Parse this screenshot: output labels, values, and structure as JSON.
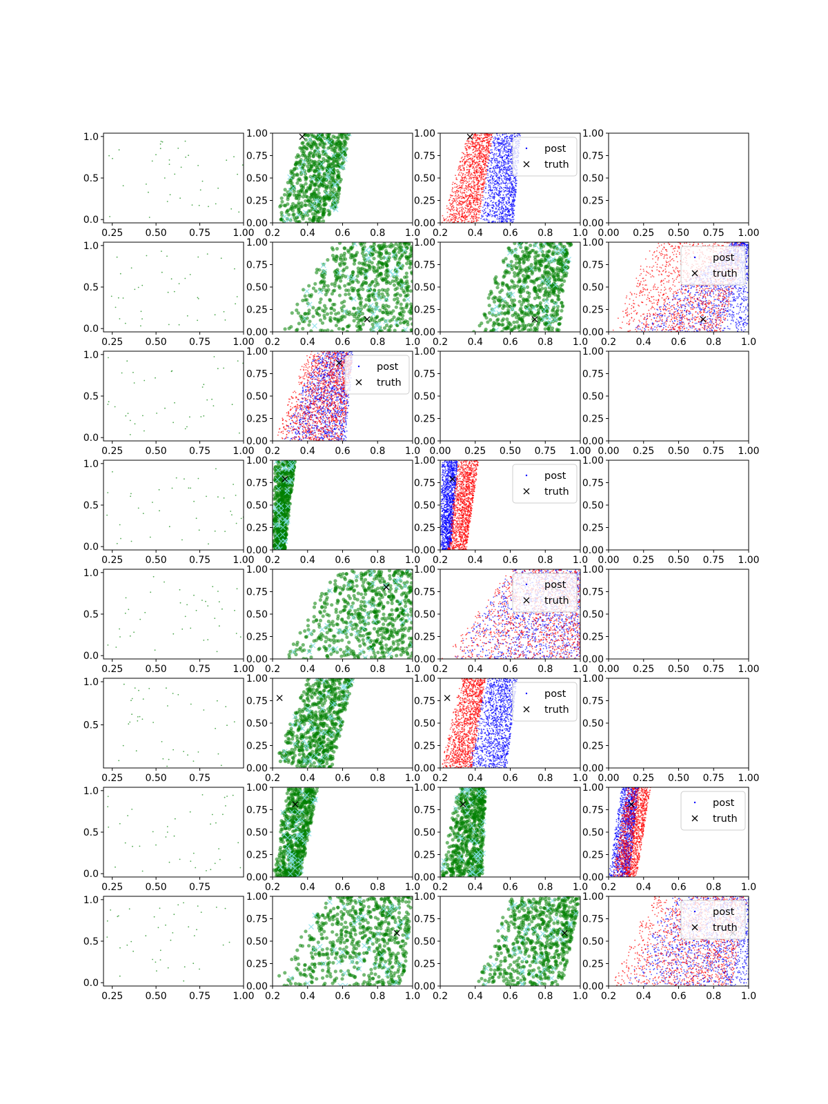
{
  "chart_data": {
    "type": "scatter",
    "title": "",
    "grid": "off",
    "rows": 8,
    "cols": 4,
    "legend_labels": {
      "post": "post",
      "truth": "truth"
    },
    "colors": {
      "green": "#008000",
      "cyan": "#7fdfe6",
      "red": "#ff0000",
      "blue": "#0000ff",
      "black": "#000000",
      "axis": "#000000"
    },
    "panels": [
      {
        "id": "r1c1",
        "row": 0,
        "col": 0,
        "kind": "sparse",
        "xlim": [
          0.2,
          1.0
        ],
        "ylim": [
          -0.04,
          1.04
        ],
        "xticks": [
          "0.25",
          "0.50",
          "0.75",
          "1.00"
        ],
        "yticks": [
          "0.0",
          "0.5",
          "1.0"
        ]
      },
      {
        "id": "r1c2",
        "row": 0,
        "col": 1,
        "kind": "green",
        "xlim": [
          0.2,
          1.0
        ],
        "ylim": [
          0,
          1
        ],
        "xticks": [
          "0.2",
          "0.4",
          "0.6",
          "0.8",
          "1.0"
        ],
        "yticks": [
          "0.00",
          "0.25",
          "0.50",
          "0.75",
          "1.00"
        ],
        "band": {
          "left": [
            0.2,
            0.38
          ],
          "right": [
            0.55,
            0.64
          ]
        },
        "truth": [
          0.37,
          0.96
        ]
      },
      {
        "id": "r1c3",
        "row": 0,
        "col": 2,
        "kind": "redblue",
        "xlim": [
          0.2,
          1.0
        ],
        "ylim": [
          0,
          1
        ],
        "xticks": [
          "0.2",
          "0.4",
          "0.6",
          "0.8",
          "1.0"
        ],
        "yticks": [
          "0.00",
          "0.25",
          "0.50",
          "0.75",
          "1.00"
        ],
        "red": {
          "left": [
            0.2,
            0.36
          ],
          "right": [
            0.42,
            0.5
          ]
        },
        "blue": {
          "left": [
            0.42,
            0.5
          ],
          "right": [
            0.62,
            0.66
          ]
        },
        "truth": [
          0.37,
          0.96
        ],
        "legend": "top-right"
      },
      {
        "id": "r1c4",
        "row": 0,
        "col": 3,
        "kind": "empty",
        "xlim": [
          0,
          1
        ],
        "ylim": [
          0,
          1
        ],
        "xticks": [
          "0.00",
          "0.25",
          "0.50",
          "0.75",
          "1.00"
        ],
        "yticks": [
          "0.00",
          "0.25",
          "0.50",
          "0.75",
          "1.00"
        ]
      },
      {
        "id": "r2c1",
        "row": 1,
        "col": 0,
        "kind": "sparse",
        "xlim": [
          0.2,
          1.0
        ],
        "ylim": [
          -0.04,
          1.04
        ],
        "xticks": [
          "0.25",
          "0.50",
          "0.75",
          "1.00"
        ],
        "yticks": [
          "0.0",
          "0.5",
          "1.0"
        ]
      },
      {
        "id": "r2c2",
        "row": 1,
        "col": 1,
        "kind": "green",
        "xlim": [
          0.2,
          1.0
        ],
        "ylim": [
          0,
          1
        ],
        "xticks": [
          "0.2",
          "0.4",
          "0.6",
          "0.8",
          "1.0"
        ],
        "yticks": [
          "0.00",
          "0.25",
          "0.50",
          "0.75",
          "1.00"
        ],
        "band": {
          "left": [
            0.22,
            0.55
          ],
          "right": [
            1.0,
            1.0
          ]
        },
        "truth": [
          0.74,
          0.14
        ]
      },
      {
        "id": "r2c3",
        "row": 1,
        "col": 2,
        "kind": "green",
        "xlim": [
          0.2,
          1.0
        ],
        "ylim": [
          0,
          1
        ],
        "xticks": [
          "0.2",
          "0.4",
          "0.6",
          "0.8",
          "1.0"
        ],
        "yticks": [
          "0.00",
          "0.25",
          "0.50",
          "0.75",
          "1.00"
        ],
        "band": {
          "left": [
            0.38,
            0.6
          ],
          "right": [
            0.88,
            0.95
          ]
        },
        "truth": [
          0.74,
          0.14
        ]
      },
      {
        "id": "r2c4",
        "row": 1,
        "col": 3,
        "kind": "redblue",
        "xlim": [
          0.2,
          1.0
        ],
        "ylim": [
          0,
          1
        ],
        "xticks": [
          "0.2",
          "0.4",
          "0.6",
          "0.8",
          "1.0"
        ],
        "yticks": [
          "0.00",
          "0.25",
          "0.50",
          "0.75",
          "1.00"
        ],
        "red": {
          "left": [
            0.2,
            0.45
          ],
          "right": [
            0.85,
            0.98
          ]
        },
        "blue": {
          "left": [
            0.3,
            0.9
          ],
          "right": [
            1.0,
            1.0
          ]
        },
        "truth": [
          0.74,
          0.14
        ],
        "legend": "top-right"
      },
      {
        "id": "r3c1",
        "row": 2,
        "col": 0,
        "kind": "sparse",
        "xlim": [
          0.2,
          1.0
        ],
        "ylim": [
          -0.04,
          1.04
        ],
        "xticks": [
          "0.25",
          "0.50",
          "0.75",
          "1.00"
        ],
        "yticks": [
          "0.0",
          "0.5",
          "1.0"
        ]
      },
      {
        "id": "r3c2",
        "row": 2,
        "col": 1,
        "kind": "redblue",
        "xlim": [
          0.2,
          1.0
        ],
        "ylim": [
          0,
          1
        ],
        "xticks": [
          "0.2",
          "0.4",
          "0.6",
          "0.8",
          "1.0"
        ],
        "yticks": [
          "0.00",
          "0.25",
          "0.50",
          "0.75",
          "1.00"
        ],
        "red": {
          "left": [
            0.2,
            0.4
          ],
          "right": [
            0.6,
            0.66
          ]
        },
        "blue": {
          "left": [
            0.25,
            0.45
          ],
          "right": [
            0.62,
            0.66
          ]
        },
        "truth": [
          0.58,
          0.87
        ],
        "legend": "top-right"
      },
      {
        "id": "r3c3",
        "row": 2,
        "col": 2,
        "kind": "empty",
        "xlim": [
          0,
          1
        ],
        "ylim": [
          0,
          1
        ],
        "xticks": [
          "0.00",
          "0.25",
          "0.50",
          "0.75",
          "1.00"
        ],
        "yticks": [
          "0.00",
          "0.25",
          "0.50",
          "0.75",
          "1.00"
        ]
      },
      {
        "id": "r3c4",
        "row": 2,
        "col": 3,
        "kind": "empty",
        "xlim": [
          0,
          1
        ],
        "ylim": [
          0,
          1
        ],
        "xticks": [
          "0.00",
          "0.25",
          "0.50",
          "0.75",
          "1.00"
        ],
        "yticks": [
          "0.00",
          "0.25",
          "0.50",
          "0.75",
          "1.00"
        ]
      },
      {
        "id": "r4c1",
        "row": 3,
        "col": 0,
        "kind": "sparse",
        "xlim": [
          0.2,
          1.0
        ],
        "ylim": [
          -0.04,
          1.04
        ],
        "xticks": [
          "0.25",
          "0.50",
          "0.75",
          "1.00"
        ],
        "yticks": [
          "0.0",
          "0.5",
          "1.0"
        ]
      },
      {
        "id": "r4c2",
        "row": 3,
        "col": 1,
        "kind": "green",
        "xlim": [
          0.2,
          1.0
        ],
        "ylim": [
          0,
          1
        ],
        "xticks": [
          "0.2",
          "0.4",
          "0.6",
          "0.8",
          "1.0"
        ],
        "yticks": [
          "0.00",
          "0.25",
          "0.50",
          "0.75",
          "1.00"
        ],
        "band": {
          "left": [
            0.2,
            0.21
          ],
          "right": [
            0.27,
            0.33
          ]
        },
        "truth": [
          0.27,
          0.79
        ]
      },
      {
        "id": "r4c3",
        "row": 3,
        "col": 2,
        "kind": "redblue",
        "xlim": [
          0.2,
          1.0
        ],
        "ylim": [
          0,
          1
        ],
        "xticks": [
          "0.2",
          "0.4",
          "0.6",
          "0.8",
          "1.0"
        ],
        "yticks": [
          "0.00",
          "0.25",
          "0.50",
          "0.75",
          "1.00"
        ],
        "red": {
          "left": [
            0.24,
            0.3
          ],
          "right": [
            0.35,
            0.42
          ]
        },
        "blue": {
          "left": [
            0.2,
            0.21
          ],
          "right": [
            0.26,
            0.3
          ]
        },
        "truth": [
          0.27,
          0.79
        ],
        "legend": "top-right"
      },
      {
        "id": "r4c4",
        "row": 3,
        "col": 3,
        "kind": "empty",
        "xlim": [
          0,
          1
        ],
        "ylim": [
          0,
          1
        ],
        "xticks": [
          "0.00",
          "0.25",
          "0.50",
          "0.75",
          "1.00"
        ],
        "yticks": [
          "0.00",
          "0.25",
          "0.50",
          "0.75",
          "1.00"
        ]
      },
      {
        "id": "r5c1",
        "row": 4,
        "col": 0,
        "kind": "sparse",
        "xlim": [
          0.2,
          1.0
        ],
        "ylim": [
          -0.04,
          1.04
        ],
        "xticks": [
          "0.25",
          "0.50",
          "0.75",
          "1.00"
        ],
        "yticks": [
          "0.0",
          "0.5",
          "1.0"
        ]
      },
      {
        "id": "r5c2",
        "row": 4,
        "col": 1,
        "kind": "green",
        "xlim": [
          0.2,
          1.0
        ],
        "ylim": [
          0,
          1
        ],
        "xticks": [
          "0.2",
          "0.4",
          "0.6",
          "0.8",
          "1.0"
        ],
        "yticks": [
          "0.00",
          "0.25",
          "0.50",
          "0.75",
          "1.00"
        ],
        "band": {
          "left": [
            0.25,
            0.55
          ],
          "right": [
            1.0,
            1.0
          ]
        },
        "truth": [
          0.85,
          0.8
        ]
      },
      {
        "id": "r5c3",
        "row": 4,
        "col": 2,
        "kind": "redblue",
        "xlim": [
          0.2,
          1.0
        ],
        "ylim": [
          0,
          1
        ],
        "xticks": [
          "0.2",
          "0.4",
          "0.6",
          "0.8",
          "1.0"
        ],
        "yticks": [
          "0.00",
          "0.25",
          "0.50",
          "0.75",
          "1.00"
        ],
        "red": {
          "left": [
            0.2,
            0.6
          ],
          "right": [
            1.0,
            1.0
          ]
        },
        "blue": {
          "left": [
            0.25,
            0.6
          ],
          "right": [
            1.0,
            1.0
          ]
        },
        "truth": [
          0.85,
          0.8
        ],
        "legend": "top-right"
      },
      {
        "id": "r5c4",
        "row": 4,
        "col": 3,
        "kind": "empty",
        "xlim": [
          0,
          1
        ],
        "ylim": [
          0,
          1
        ],
        "xticks": [
          "0.00",
          "0.25",
          "0.50",
          "0.75",
          "1.00"
        ],
        "yticks": [
          "0.00",
          "0.25",
          "0.50",
          "0.75",
          "1.00"
        ]
      },
      {
        "id": "r6c1",
        "row": 5,
        "col": 0,
        "kind": "sparse",
        "xlim": [
          0.2,
          1.0
        ],
        "ylim": [
          0.0,
          1.04
        ],
        "xticks": [
          "0.25",
          "0.50",
          "0.75"
        ],
        "yticks": [
          "0.5",
          "1.0"
        ]
      },
      {
        "id": "r6c2",
        "row": 5,
        "col": 1,
        "kind": "green",
        "xlim": [
          0.2,
          1.0
        ],
        "ylim": [
          0,
          1
        ],
        "xticks": [
          "0.2",
          "0.4",
          "0.6",
          "0.8",
          "1.0"
        ],
        "yticks": [
          "0.00",
          "0.25",
          "0.50",
          "0.75",
          "1.00"
        ],
        "band": {
          "left": [
            0.2,
            0.4
          ],
          "right": [
            0.54,
            0.66
          ]
        },
        "truth": [
          0.24,
          0.78
        ]
      },
      {
        "id": "r6c3",
        "row": 5,
        "col": 2,
        "kind": "redblue",
        "xlim": [
          0.2,
          1.0
        ],
        "ylim": [
          0,
          1
        ],
        "xticks": [
          "0.2",
          "0.4",
          "0.6",
          "0.8",
          "1.0"
        ],
        "yticks": [
          "0.00",
          "0.25",
          "0.50",
          "0.75",
          "1.00"
        ],
        "red": {
          "left": [
            0.2,
            0.32
          ],
          "right": [
            0.38,
            0.46
          ]
        },
        "blue": {
          "left": [
            0.36,
            0.46
          ],
          "right": [
            0.58,
            0.64
          ]
        },
        "truth": [
          0.24,
          0.78
        ],
        "legend": "top-right"
      },
      {
        "id": "r6c4",
        "row": 5,
        "col": 3,
        "kind": "empty",
        "xlim": [
          0,
          1
        ],
        "ylim": [
          0,
          1
        ],
        "xticks": [
          "0.00",
          "0.25",
          "0.50",
          "0.75",
          "1.00"
        ],
        "yticks": [
          "0.00",
          "0.25",
          "0.50",
          "0.75",
          "1.00"
        ]
      },
      {
        "id": "r7c1",
        "row": 6,
        "col": 0,
        "kind": "sparse",
        "xlim": [
          0.2,
          1.0
        ],
        "ylim": [
          -0.04,
          1.04
        ],
        "xticks": [
          "0.25",
          "0.50",
          "0.75"
        ],
        "yticks": [
          "0.0",
          "0.5",
          "1.0"
        ]
      },
      {
        "id": "r7c2",
        "row": 6,
        "col": 1,
        "kind": "green",
        "xlim": [
          0.2,
          1.0
        ],
        "ylim": [
          0,
          1
        ],
        "xticks": [
          "0.2",
          "0.4",
          "0.6",
          "0.8",
          "1.0"
        ],
        "yticks": [
          "0.00",
          "0.25",
          "0.50",
          "0.75",
          "1.00"
        ],
        "band": {
          "left": [
            0.2,
            0.28
          ],
          "right": [
            0.36,
            0.46
          ]
        },
        "truth": [
          0.33,
          0.81
        ]
      },
      {
        "id": "r7c3",
        "row": 6,
        "col": 2,
        "kind": "green",
        "xlim": [
          0.2,
          1.0
        ],
        "ylim": [
          0,
          1
        ],
        "xticks": [
          "0.2",
          "0.4",
          "0.6",
          "0.8",
          "1.0"
        ],
        "yticks": [
          "0.00",
          "0.25",
          "0.50",
          "0.75",
          "1.00"
        ],
        "band": {
          "left": [
            0.2,
            0.3
          ],
          "right": [
            0.44,
            0.46
          ]
        },
        "truth": [
          0.33,
          0.81
        ]
      },
      {
        "id": "r7c4",
        "row": 6,
        "col": 3,
        "kind": "redblue",
        "xlim": [
          0.2,
          1.0
        ],
        "ylim": [
          0,
          1
        ],
        "xticks": [
          "0.2",
          "0.4",
          "0.6",
          "0.8",
          "1.0"
        ],
        "yticks": [
          "0.00",
          "0.25",
          "0.50",
          "0.75",
          "1.00"
        ],
        "red": {
          "left": [
            0.22,
            0.3
          ],
          "right": [
            0.36,
            0.44
          ]
        },
        "blue": {
          "left": [
            0.2,
            0.27
          ],
          "right": [
            0.32,
            0.37
          ]
        },
        "truth": [
          0.33,
          0.81
        ],
        "legend": "top-right"
      },
      {
        "id": "r8c1",
        "row": 7,
        "col": 0,
        "kind": "sparse",
        "xlim": [
          0.2,
          1.0
        ],
        "ylim": [
          -0.04,
          1.04
        ],
        "xticks": [
          "0.25",
          "0.50",
          "0.75",
          "1.00"
        ],
        "yticks": [
          "0.0",
          "0.5",
          "1.0"
        ]
      },
      {
        "id": "r8c2",
        "row": 7,
        "col": 1,
        "kind": "green",
        "xlim": [
          0.2,
          1.0
        ],
        "ylim": [
          0,
          1
        ],
        "xticks": [
          "0.2",
          "0.4",
          "0.6",
          "0.8",
          "1.0"
        ],
        "yticks": [
          "0.00",
          "0.25",
          "0.50",
          "0.75",
          "1.00"
        ],
        "band": {
          "left": [
            0.2,
            0.5
          ],
          "right": [
            0.95,
            1.0
          ]
        },
        "truth": [
          0.91,
          0.59
        ]
      },
      {
        "id": "r8c3",
        "row": 7,
        "col": 2,
        "kind": "green",
        "xlim": [
          0.2,
          1.0
        ],
        "ylim": [
          0,
          1
        ],
        "xticks": [
          "0.2",
          "0.4",
          "0.6",
          "0.8",
          "1.0"
        ],
        "yticks": [
          "0.00",
          "0.25",
          "0.50",
          "0.75",
          "1.00"
        ],
        "band": {
          "left": [
            0.4,
            0.6
          ],
          "right": [
            0.9,
            1.0
          ]
        },
        "truth": [
          0.91,
          0.59
        ]
      },
      {
        "id": "r8c4",
        "row": 7,
        "col": 3,
        "kind": "redblue",
        "xlim": [
          0.2,
          1.0
        ],
        "ylim": [
          0,
          1
        ],
        "xticks": [
          "0.2",
          "0.4",
          "0.6",
          "0.8",
          "1.0"
        ],
        "yticks": [
          "0.00",
          "0.25",
          "0.50",
          "0.75",
          "1.00"
        ],
        "red": {
          "left": [
            0.2,
            0.45
          ],
          "right": [
            0.9,
            1.0
          ]
        },
        "blue": {
          "left": [
            0.3,
            0.55
          ],
          "right": [
            1.0,
            1.0
          ]
        },
        "truth": [
          0.91,
          0.59
        ],
        "legend": "top-right"
      }
    ]
  }
}
